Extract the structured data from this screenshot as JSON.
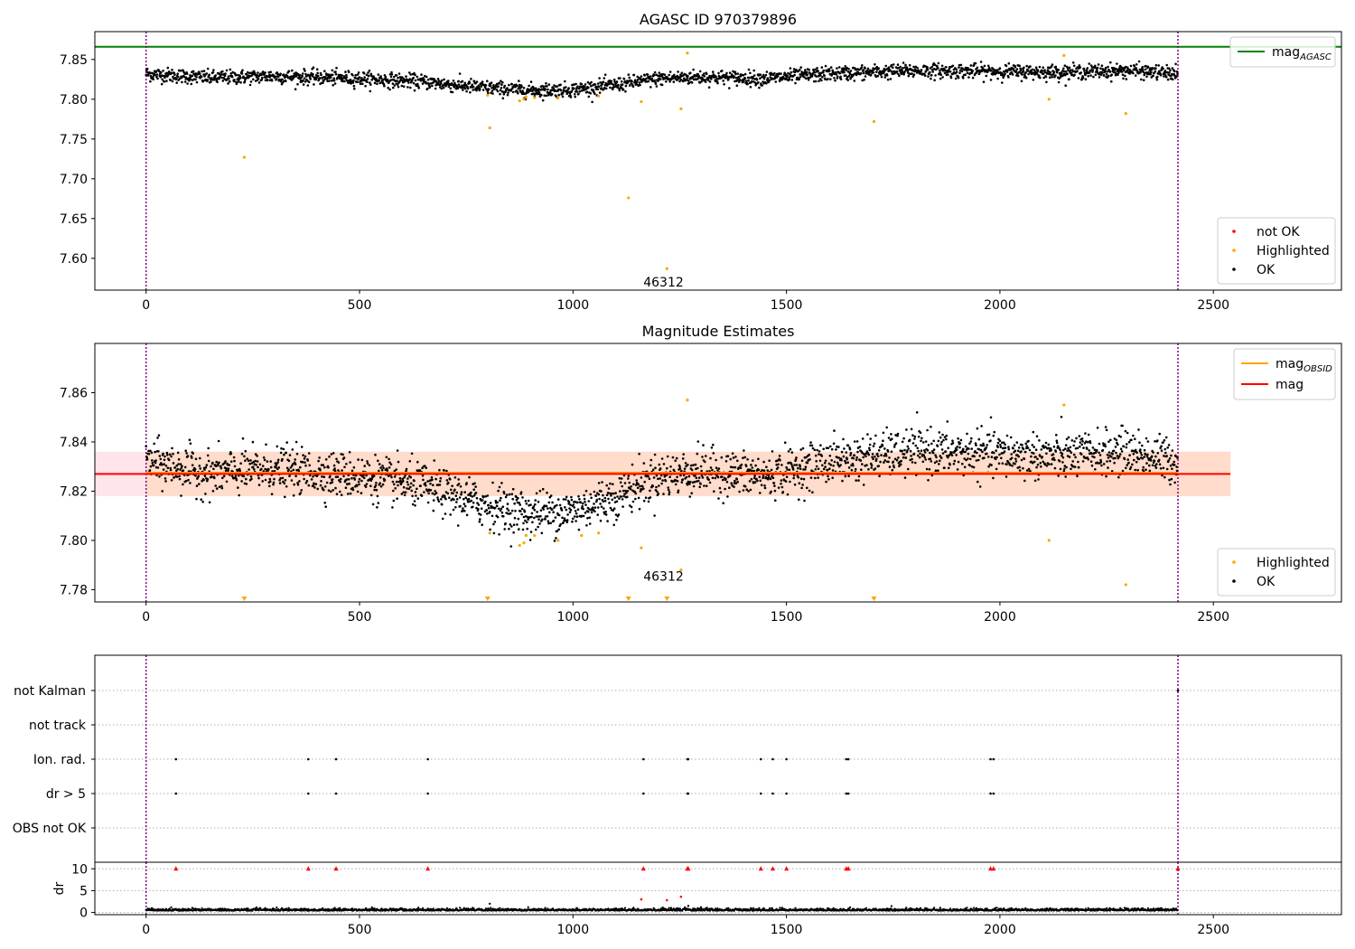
{
  "colors": {
    "ok": "#000000",
    "highlighted": "#ffa500",
    "not_ok": "#ff0000",
    "mag_agasc": "#008000",
    "mag_obsid": "#ffa500",
    "mag": "#ff0000",
    "obs_band": "#ffdccb",
    "mag_band": "#ffe4ea",
    "boundary": "#800080",
    "grid": "#b0b0b0"
  },
  "chart_data": [
    {
      "id": "agasc",
      "type": "scatter",
      "title": "AGASC ID 970379896",
      "xlim": [
        -120,
        2800
      ],
      "ylim": [
        7.56,
        7.885
      ],
      "xticks": [
        0,
        500,
        1000,
        1500,
        2000,
        2500
      ],
      "xtick_labels": [
        "0",
        "500",
        "1000",
        "1500",
        "2000",
        "2500"
      ],
      "yticks": [
        7.6,
        7.65,
        7.7,
        7.75,
        7.8,
        7.85
      ],
      "ytick_labels": [
        "7.60",
        "7.65",
        "7.70",
        "7.75",
        "7.80",
        "7.85"
      ],
      "obs_boundaries": [
        0,
        2417
      ],
      "obs_labels": [
        {
          "x": 1212,
          "y": 7.57,
          "text": "46312"
        }
      ],
      "reference_lines": [
        {
          "name": "mag_AGASC",
          "y": 7.866,
          "color": "#008000"
        }
      ],
      "legend_lines": {
        "position": "upper right",
        "entries": [
          {
            "label": "mag",
            "subscript": "AGASC",
            "color": "#008000"
          }
        ]
      },
      "legend_points": {
        "position": "lower right",
        "entries": [
          {
            "label": "not OK",
            "color": "#ff0000"
          },
          {
            "label": "Highlighted",
            "color": "#ffa500"
          },
          {
            "label": "OK",
            "color": "#000000"
          }
        ]
      },
      "ok_series": {
        "n": 2417,
        "x_start": 0,
        "x_end": 2416,
        "trend_x": [
          0,
          150,
          300,
          500,
          650,
          780,
          900,
          1000,
          1100,
          1200,
          1300,
          1450,
          1600,
          1800,
          2000,
          2150,
          2300,
          2416
        ],
        "trend_y": [
          7.832,
          7.827,
          7.829,
          7.826,
          7.822,
          7.815,
          7.811,
          7.812,
          7.818,
          7.826,
          7.828,
          7.826,
          7.832,
          7.836,
          7.835,
          7.834,
          7.836,
          7.832
        ],
        "scatter": 0.0045
      },
      "highlighted_points": [
        [
          230,
          7.727
        ],
        [
          800,
          7.805
        ],
        [
          805,
          7.764
        ],
        [
          875,
          7.798
        ],
        [
          885,
          7.8
        ],
        [
          890,
          7.803
        ],
        [
          910,
          7.802
        ],
        [
          965,
          7.802
        ],
        [
          1060,
          7.804
        ],
        [
          1130,
          7.676
        ],
        [
          1160,
          7.797
        ],
        [
          1220,
          7.587
        ],
        [
          1253,
          7.788
        ],
        [
          1268,
          7.858
        ],
        [
          1705,
          7.772
        ],
        [
          2115,
          7.8
        ],
        [
          2150,
          7.855
        ],
        [
          2295,
          7.782
        ]
      ]
    },
    {
      "id": "estimates",
      "type": "scatter",
      "title": "Magnitude Estimates",
      "xlim": [
        -120,
        2800
      ],
      "ylim": [
        7.775,
        7.88
      ],
      "xticks": [
        0,
        500,
        1000,
        1500,
        2000,
        2500
      ],
      "xtick_labels": [
        "0",
        "500",
        "1000",
        "1500",
        "2000",
        "2500"
      ],
      "yticks": [
        7.78,
        7.8,
        7.82,
        7.84,
        7.86
      ],
      "ytick_labels": [
        "7.78",
        "7.80",
        "7.82",
        "7.84",
        "7.86"
      ],
      "obs_boundaries": [
        0,
        2417
      ],
      "obs_labels": [
        {
          "x": 1212,
          "y": 7.7855,
          "text": "46312"
        }
      ],
      "mag_band": {
        "x": [
          -120,
          2540
        ],
        "y": [
          7.818,
          7.836
        ]
      },
      "obs_band": {
        "x": [
          0,
          2540
        ],
        "y": [
          7.818,
          7.836
        ]
      },
      "reference_lines": [
        {
          "name": "mag_OBSID",
          "y": 7.8275,
          "x": [
            0,
            2417
          ],
          "color": "#ffa500"
        },
        {
          "name": "mag",
          "y": 7.827,
          "x": [
            -120,
            2540
          ],
          "color": "#ff0000"
        }
      ],
      "legend_lines": {
        "position": "upper right",
        "entries": [
          {
            "label": "mag",
            "subscript": "OBSID",
            "color": "#ffa500"
          },
          {
            "label": "mag",
            "subscript": "",
            "color": "#ff0000"
          }
        ]
      },
      "legend_points": {
        "position": "lower right",
        "entries": [
          {
            "label": "Highlighted",
            "color": "#ffa500"
          },
          {
            "label": "OK",
            "color": "#000000"
          }
        ]
      },
      "ok_series": {
        "n": 2417,
        "x_start": 0,
        "x_end": 2416,
        "trend_x": [
          0,
          150,
          300,
          500,
          650,
          780,
          900,
          1000,
          1100,
          1200,
          1300,
          1450,
          1600,
          1800,
          2000,
          2150,
          2300,
          2416
        ],
        "trend_y": [
          7.832,
          7.827,
          7.829,
          7.826,
          7.822,
          7.815,
          7.811,
          7.812,
          7.818,
          7.826,
          7.828,
          7.826,
          7.832,
          7.836,
          7.835,
          7.834,
          7.836,
          7.832
        ],
        "scatter": 0.0045
      },
      "highlighted_points": [
        [
          805,
          7.803
        ],
        [
          875,
          7.798
        ],
        [
          885,
          7.799
        ],
        [
          890,
          7.802
        ],
        [
          910,
          7.802
        ],
        [
          965,
          7.8
        ],
        [
          1020,
          7.802
        ],
        [
          1060,
          7.803
        ],
        [
          1160,
          7.797
        ],
        [
          1253,
          7.788
        ],
        [
          1268,
          7.857
        ],
        [
          2115,
          7.8
        ],
        [
          2150,
          7.855
        ],
        [
          2295,
          7.782
        ]
      ],
      "offscale_highlighted_x": [
        230,
        800,
        1130,
        1220,
        1705
      ]
    },
    {
      "id": "flags",
      "type": "scatter",
      "title": "",
      "xlim": [
        -120,
        2800
      ],
      "categories": [
        "not Kalman",
        "not track",
        "Ion. rad.",
        "dr > 5",
        "OBS not OK"
      ],
      "obs_boundaries": [
        0,
        2417
      ],
      "flags": {
        "not Kalman": [
          2417
        ],
        "not track": [],
        "Ion. rad.": [
          70,
          380,
          445,
          660,
          1165,
          1268,
          1270,
          1440,
          1468,
          1500,
          1640,
          1645,
          1978,
          1985
        ],
        "dr > 5": [
          70,
          380,
          445,
          660,
          1165,
          1268,
          1270,
          1440,
          1468,
          1500,
          1640,
          1645,
          1978,
          1985
        ],
        "OBS not OK": []
      }
    },
    {
      "id": "dr",
      "type": "scatter",
      "title": "",
      "ylabel": "dr",
      "xlim": [
        -120,
        2800
      ],
      "ylim": [
        -0.5,
        11.5
      ],
      "xticks": [
        0,
        500,
        1000,
        1500,
        2000,
        2500
      ],
      "xtick_labels": [
        "0",
        "500",
        "1000",
        "1500",
        "2000",
        "2500"
      ],
      "yticks": [
        0,
        5,
        10
      ],
      "ytick_labels": [
        "0",
        "5",
        "10"
      ],
      "obs_boundaries": [
        0,
        2417
      ],
      "ok_series": {
        "n": 2417,
        "x_start": 0,
        "x_end": 2416,
        "level": 0.4,
        "scatter": 0.25
      },
      "ok_outliers": [
        [
          805,
          2.0
        ],
        [
          1270,
          1.5
        ],
        [
          1300,
          1.2
        ]
      ],
      "not_ok_markers": {
        "y": 10,
        "x": [
          70,
          380,
          445,
          660,
          1165,
          1268,
          1270,
          1440,
          1468,
          1500,
          1640,
          1645,
          1978,
          1985,
          2417
        ]
      },
      "not_ok_points": [
        [
          1160,
          3.0
        ],
        [
          1220,
          2.8
        ],
        [
          1253,
          3.6
        ]
      ]
    }
  ]
}
